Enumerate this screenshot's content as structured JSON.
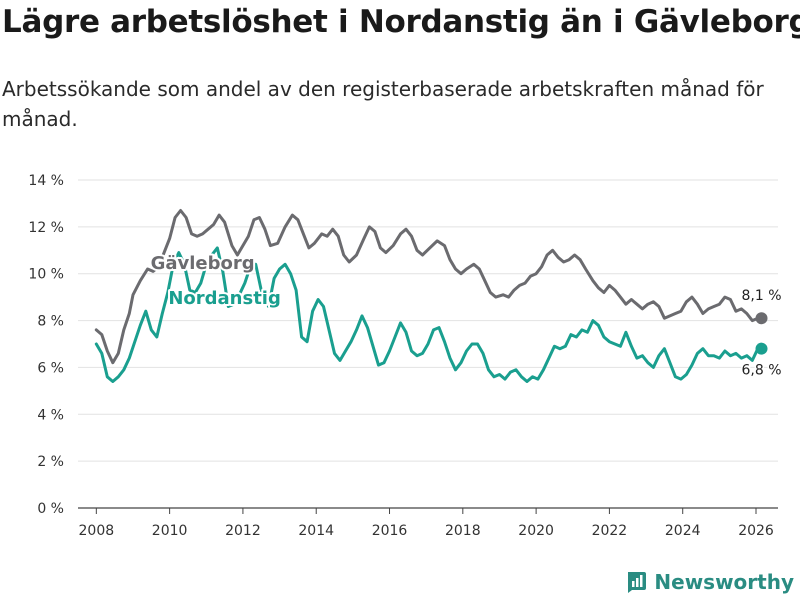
{
  "title": "Lägre arbetslöshet i Nordanstig än i Gävleborg",
  "subtitle": "Arbetssökande som andel av den registerbaserade arbetskraften månad för månad.",
  "brand": "Newsworthy",
  "chart_data": {
    "type": "line",
    "ylim": [
      0,
      14
    ],
    "xlim": [
      2007.5,
      2026.6
    ],
    "y_ticks": [
      0,
      2,
      4,
      6,
      8,
      10,
      12,
      14
    ],
    "y_tick_labels": [
      "0 %",
      "2 %",
      "4 %",
      "6 %",
      "8 %",
      "10 %",
      "12 %",
      "14 %"
    ],
    "x_ticks": [
      2008,
      2010,
      2012,
      2014,
      2016,
      2018,
      2020,
      2022,
      2024,
      2026
    ],
    "x_tick_labels": [
      "2008",
      "2010",
      "2012",
      "2014",
      "2016",
      "2018",
      "2020",
      "2022",
      "2024",
      "2026"
    ],
    "grid": true,
    "series": [
      {
        "name": "Gävleborg",
        "color": "#6b6b6f",
        "label_at": [
          2010.9,
          10.2
        ],
        "end_label": "8,1 %",
        "end_value": 8.1,
        "points": [
          [
            2008.0,
            7.6
          ],
          [
            2008.15,
            7.4
          ],
          [
            2008.3,
            6.7
          ],
          [
            2008.45,
            6.2
          ],
          [
            2008.6,
            6.6
          ],
          [
            2008.75,
            7.6
          ],
          [
            2008.9,
            8.3
          ],
          [
            2009.0,
            9.1
          ],
          [
            2009.2,
            9.7
          ],
          [
            2009.4,
            10.2
          ],
          [
            2009.55,
            10.1
          ],
          [
            2009.7,
            10.3
          ],
          [
            2009.85,
            10.9
          ],
          [
            2010.0,
            11.5
          ],
          [
            2010.15,
            12.4
          ],
          [
            2010.3,
            12.7
          ],
          [
            2010.45,
            12.4
          ],
          [
            2010.6,
            11.7
          ],
          [
            2010.75,
            11.6
          ],
          [
            2010.9,
            11.7
          ],
          [
            2011.05,
            11.9
          ],
          [
            2011.2,
            12.1
          ],
          [
            2011.35,
            12.5
          ],
          [
            2011.5,
            12.2
          ],
          [
            2011.7,
            11.2
          ],
          [
            2011.85,
            10.8
          ],
          [
            2012.0,
            11.2
          ],
          [
            2012.15,
            11.6
          ],
          [
            2012.3,
            12.3
          ],
          [
            2012.45,
            12.4
          ],
          [
            2012.6,
            11.9
          ],
          [
            2012.75,
            11.2
          ],
          [
            2012.95,
            11.3
          ],
          [
            2013.15,
            12.0
          ],
          [
            2013.35,
            12.5
          ],
          [
            2013.5,
            12.3
          ],
          [
            2013.65,
            11.7
          ],
          [
            2013.8,
            11.1
          ],
          [
            2013.95,
            11.3
          ],
          [
            2014.15,
            11.7
          ],
          [
            2014.3,
            11.6
          ],
          [
            2014.45,
            11.9
          ],
          [
            2014.6,
            11.6
          ],
          [
            2014.75,
            10.8
          ],
          [
            2014.9,
            10.5
          ],
          [
            2015.1,
            10.8
          ],
          [
            2015.3,
            11.5
          ],
          [
            2015.45,
            12.0
          ],
          [
            2015.6,
            11.8
          ],
          [
            2015.75,
            11.1
          ],
          [
            2015.9,
            10.9
          ],
          [
            2016.1,
            11.2
          ],
          [
            2016.3,
            11.7
          ],
          [
            2016.45,
            11.9
          ],
          [
            2016.6,
            11.6
          ],
          [
            2016.75,
            11.0
          ],
          [
            2016.9,
            10.8
          ],
          [
            2017.1,
            11.1
          ],
          [
            2017.3,
            11.4
          ],
          [
            2017.5,
            11.2
          ],
          [
            2017.65,
            10.6
          ],
          [
            2017.8,
            10.2
          ],
          [
            2017.95,
            10.0
          ],
          [
            2018.1,
            10.2
          ],
          [
            2018.3,
            10.4
          ],
          [
            2018.45,
            10.2
          ],
          [
            2018.6,
            9.7
          ],
          [
            2018.75,
            9.2
          ],
          [
            2018.9,
            9.0
          ],
          [
            2019.1,
            9.1
          ],
          [
            2019.25,
            9.0
          ],
          [
            2019.4,
            9.3
          ],
          [
            2019.55,
            9.5
          ],
          [
            2019.7,
            9.6
          ],
          [
            2019.85,
            9.9
          ],
          [
            2020.0,
            10.0
          ],
          [
            2020.15,
            10.3
          ],
          [
            2020.3,
            10.8
          ],
          [
            2020.45,
            11.0
          ],
          [
            2020.6,
            10.7
          ],
          [
            2020.75,
            10.5
          ],
          [
            2020.9,
            10.6
          ],
          [
            2021.05,
            10.8
          ],
          [
            2021.2,
            10.6
          ],
          [
            2021.35,
            10.2
          ],
          [
            2021.55,
            9.7
          ],
          [
            2021.7,
            9.4
          ],
          [
            2021.85,
            9.2
          ],
          [
            2022.0,
            9.5
          ],
          [
            2022.15,
            9.3
          ],
          [
            2022.3,
            9.0
          ],
          [
            2022.45,
            8.7
          ],
          [
            2022.6,
            8.9
          ],
          [
            2022.75,
            8.7
          ],
          [
            2022.9,
            8.5
          ],
          [
            2023.05,
            8.7
          ],
          [
            2023.2,
            8.8
          ],
          [
            2023.35,
            8.6
          ],
          [
            2023.5,
            8.1
          ],
          [
            2023.65,
            8.2
          ],
          [
            2023.8,
            8.3
          ],
          [
            2023.95,
            8.4
          ],
          [
            2024.1,
            8.8
          ],
          [
            2024.25,
            9.0
          ],
          [
            2024.4,
            8.7
          ],
          [
            2024.55,
            8.3
          ],
          [
            2024.7,
            8.5
          ],
          [
            2024.85,
            8.6
          ],
          [
            2025.0,
            8.7
          ],
          [
            2025.15,
            9.0
          ],
          [
            2025.3,
            8.9
          ],
          [
            2025.45,
            8.4
          ],
          [
            2025.6,
            8.5
          ],
          [
            2025.75,
            8.3
          ],
          [
            2025.9,
            8.0
          ],
          [
            2026.05,
            8.1
          ],
          [
            2026.15,
            8.1
          ]
        ]
      },
      {
        "name": "Nordanstig",
        "color": "#1a9f8f",
        "label_at": [
          2011.5,
          8.7
        ],
        "end_label": "6,8 %",
        "end_value": 6.8,
        "points": [
          [
            2008.0,
            7.0
          ],
          [
            2008.15,
            6.6
          ],
          [
            2008.3,
            5.6
          ],
          [
            2008.45,
            5.4
          ],
          [
            2008.6,
            5.6
          ],
          [
            2008.75,
            5.9
          ],
          [
            2008.9,
            6.4
          ],
          [
            2009.05,
            7.1
          ],
          [
            2009.2,
            7.8
          ],
          [
            2009.35,
            8.4
          ],
          [
            2009.5,
            7.6
          ],
          [
            2009.65,
            7.3
          ],
          [
            2009.8,
            8.3
          ],
          [
            2009.95,
            9.2
          ],
          [
            2010.1,
            10.4
          ],
          [
            2010.25,
            10.9
          ],
          [
            2010.4,
            10.4
          ],
          [
            2010.55,
            9.3
          ],
          [
            2010.7,
            9.2
          ],
          [
            2010.85,
            9.6
          ],
          [
            2011.0,
            10.4
          ],
          [
            2011.15,
            10.8
          ],
          [
            2011.3,
            11.1
          ],
          [
            2011.45,
            10.1
          ],
          [
            2011.6,
            8.6
          ],
          [
            2011.75,
            8.7
          ],
          [
            2011.9,
            9.1
          ],
          [
            2012.05,
            9.6
          ],
          [
            2012.2,
            10.3
          ],
          [
            2012.35,
            10.4
          ],
          [
            2012.5,
            9.3
          ],
          [
            2012.7,
            8.6
          ],
          [
            2012.85,
            9.8
          ],
          [
            2013.0,
            10.2
          ],
          [
            2013.15,
            10.4
          ],
          [
            2013.3,
            10.0
          ],
          [
            2013.45,
            9.3
          ],
          [
            2013.6,
            7.3
          ],
          [
            2013.75,
            7.1
          ],
          [
            2013.9,
            8.4
          ],
          [
            2014.05,
            8.9
          ],
          [
            2014.2,
            8.6
          ],
          [
            2014.35,
            7.6
          ],
          [
            2014.5,
            6.6
          ],
          [
            2014.65,
            6.3
          ],
          [
            2014.8,
            6.7
          ],
          [
            2014.95,
            7.1
          ],
          [
            2015.1,
            7.6
          ],
          [
            2015.25,
            8.2
          ],
          [
            2015.4,
            7.7
          ],
          [
            2015.55,
            6.9
          ],
          [
            2015.7,
            6.1
          ],
          [
            2015.85,
            6.2
          ],
          [
            2016.0,
            6.7
          ],
          [
            2016.15,
            7.3
          ],
          [
            2016.3,
            7.9
          ],
          [
            2016.45,
            7.5
          ],
          [
            2016.6,
            6.7
          ],
          [
            2016.75,
            6.5
          ],
          [
            2016.9,
            6.6
          ],
          [
            2017.05,
            7.0
          ],
          [
            2017.2,
            7.6
          ],
          [
            2017.35,
            7.7
          ],
          [
            2017.5,
            7.1
          ],
          [
            2017.65,
            6.4
          ],
          [
            2017.8,
            5.9
          ],
          [
            2017.95,
            6.2
          ],
          [
            2018.1,
            6.7
          ],
          [
            2018.25,
            7.0
          ],
          [
            2018.4,
            7.0
          ],
          [
            2018.55,
            6.6
          ],
          [
            2018.7,
            5.9
          ],
          [
            2018.85,
            5.6
          ],
          [
            2019.0,
            5.7
          ],
          [
            2019.15,
            5.5
          ],
          [
            2019.3,
            5.8
          ],
          [
            2019.45,
            5.9
          ],
          [
            2019.6,
            5.6
          ],
          [
            2019.75,
            5.4
          ],
          [
            2019.9,
            5.6
          ],
          [
            2020.05,
            5.5
          ],
          [
            2020.2,
            5.9
          ],
          [
            2020.35,
            6.4
          ],
          [
            2020.5,
            6.9
          ],
          [
            2020.65,
            6.8
          ],
          [
            2020.8,
            6.9
          ],
          [
            2020.95,
            7.4
          ],
          [
            2021.1,
            7.3
          ],
          [
            2021.25,
            7.6
          ],
          [
            2021.4,
            7.5
          ],
          [
            2021.55,
            8.0
          ],
          [
            2021.7,
            7.8
          ],
          [
            2021.85,
            7.3
          ],
          [
            2022.0,
            7.1
          ],
          [
            2022.15,
            7.0
          ],
          [
            2022.3,
            6.9
          ],
          [
            2022.45,
            7.5
          ],
          [
            2022.6,
            6.9
          ],
          [
            2022.75,
            6.4
          ],
          [
            2022.9,
            6.5
          ],
          [
            2023.05,
            6.2
          ],
          [
            2023.2,
            6.0
          ],
          [
            2023.35,
            6.5
          ],
          [
            2023.5,
            6.8
          ],
          [
            2023.65,
            6.2
          ],
          [
            2023.8,
            5.6
          ],
          [
            2023.95,
            5.5
          ],
          [
            2024.1,
            5.7
          ],
          [
            2024.25,
            6.1
          ],
          [
            2024.4,
            6.6
          ],
          [
            2024.55,
            6.8
          ],
          [
            2024.7,
            6.5
          ],
          [
            2024.85,
            6.5
          ],
          [
            2025.0,
            6.4
          ],
          [
            2025.15,
            6.7
          ],
          [
            2025.3,
            6.5
          ],
          [
            2025.45,
            6.6
          ],
          [
            2025.6,
            6.4
          ],
          [
            2025.75,
            6.5
          ],
          [
            2025.9,
            6.3
          ],
          [
            2026.05,
            6.8
          ],
          [
            2026.15,
            6.8
          ]
        ]
      }
    ]
  }
}
